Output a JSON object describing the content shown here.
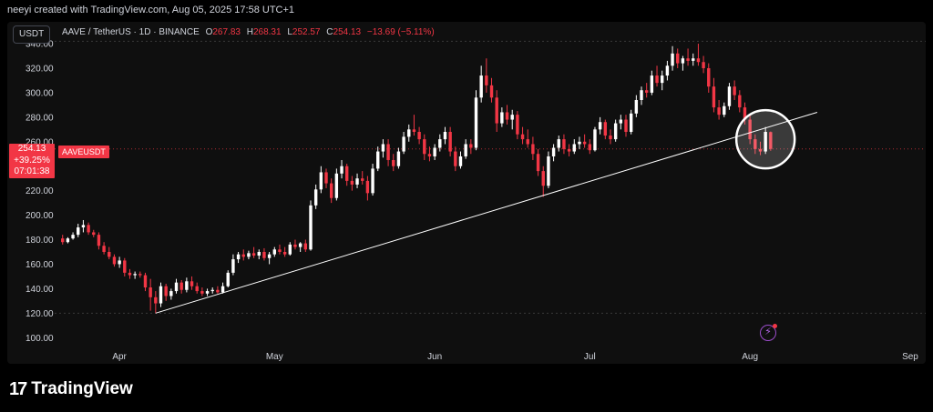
{
  "header": {
    "attribution": "neeyi created with TradingView.com, Aug 05, 2025 17:58 UTC+1"
  },
  "toolbar": {
    "currency": "USDT"
  },
  "legend": {
    "symbol": "AAVE / TetherUS · 1D · BINANCE",
    "open_label": "O",
    "open": "267.83",
    "high_label": "H",
    "high": "268.31",
    "low_label": "L",
    "low": "252.57",
    "close_label": "C",
    "close": "254.13",
    "change": "−13.69 (−5.11%)"
  },
  "price_badge": {
    "price": "254.13",
    "change_pct": "+39.25%",
    "countdown": "07:01:38"
  },
  "price_tag": "AAVEUSDT",
  "footer": {
    "brand": "TradingView",
    "logo_icon": "tradingview-logo-icon"
  },
  "colors": {
    "up": "#ffffff",
    "down": "#f23645",
    "background": "#0f0f0f",
    "trendline": "#ffffff",
    "accent": "#9c4dcc"
  },
  "chart_data": {
    "type": "candlestick",
    "y_ticks": [
      "100.00",
      "120.00",
      "140.00",
      "160.00",
      "180.00",
      "200.00",
      "220.00",
      "240.00",
      "260.00",
      "280.00",
      "300.00",
      "320.00",
      "340.00"
    ],
    "ylim": [
      95,
      343
    ],
    "x_tick_labels": [
      {
        "label": "Apr",
        "date": "2025-04-01"
      },
      {
        "label": "May",
        "date": "2025-05-01"
      },
      {
        "label": "Jun",
        "date": "2025-06-01"
      },
      {
        "label": "Jul",
        "date": "2025-07-01"
      },
      {
        "label": "Aug",
        "date": "2025-08-01"
      },
      {
        "label": "Sep",
        "date": "2025-09-01"
      }
    ],
    "xlim": [
      "2025-03-11",
      "2025-09-04"
    ],
    "dashed_levels": [
      342,
      120
    ],
    "current_price": 254.13,
    "trendline": {
      "start": {
        "date": "2025-04-08",
        "price": 120
      },
      "end": {
        "date": "2025-08-14",
        "price": 284
      }
    },
    "highlight_circle": {
      "date": "2025-08-04",
      "price": 262
    },
    "candles": [
      {
        "date": "2025-03-21",
        "o": 181,
        "h": 184,
        "l": 176,
        "c": 178
      },
      {
        "date": "2025-03-22",
        "o": 178,
        "h": 182,
        "l": 177,
        "c": 181
      },
      {
        "date": "2025-03-23",
        "o": 181,
        "h": 186,
        "l": 180,
        "c": 184
      },
      {
        "date": "2025-03-24",
        "o": 184,
        "h": 193,
        "l": 182,
        "c": 190
      },
      {
        "date": "2025-03-25",
        "o": 190,
        "h": 196,
        "l": 186,
        "c": 192
      },
      {
        "date": "2025-03-26",
        "o": 192,
        "h": 194,
        "l": 184,
        "c": 186
      },
      {
        "date": "2025-03-27",
        "o": 186,
        "h": 188,
        "l": 182,
        "c": 184
      },
      {
        "date": "2025-03-28",
        "o": 184,
        "h": 186,
        "l": 172,
        "c": 175
      },
      {
        "date": "2025-03-29",
        "o": 175,
        "h": 178,
        "l": 168,
        "c": 170
      },
      {
        "date": "2025-03-30",
        "o": 170,
        "h": 174,
        "l": 164,
        "c": 166
      },
      {
        "date": "2025-03-31",
        "o": 166,
        "h": 168,
        "l": 158,
        "c": 160
      },
      {
        "date": "2025-04-01",
        "o": 160,
        "h": 166,
        "l": 157,
        "c": 163
      },
      {
        "date": "2025-04-02",
        "o": 163,
        "h": 165,
        "l": 150,
        "c": 153
      },
      {
        "date": "2025-04-03",
        "o": 153,
        "h": 156,
        "l": 148,
        "c": 151
      },
      {
        "date": "2025-04-04",
        "o": 151,
        "h": 154,
        "l": 148,
        "c": 152
      },
      {
        "date": "2025-04-05",
        "o": 152,
        "h": 154,
        "l": 149,
        "c": 151
      },
      {
        "date": "2025-04-06",
        "o": 151,
        "h": 153,
        "l": 138,
        "c": 141
      },
      {
        "date": "2025-04-07",
        "o": 141,
        "h": 148,
        "l": 122,
        "c": 133
      },
      {
        "date": "2025-04-08",
        "o": 133,
        "h": 138,
        "l": 120,
        "c": 128
      },
      {
        "date": "2025-04-09",
        "o": 128,
        "h": 145,
        "l": 125,
        "c": 142
      },
      {
        "date": "2025-04-10",
        "o": 142,
        "h": 144,
        "l": 130,
        "c": 134
      },
      {
        "date": "2025-04-11",
        "o": 134,
        "h": 140,
        "l": 131,
        "c": 138
      },
      {
        "date": "2025-04-12",
        "o": 138,
        "h": 148,
        "l": 136,
        "c": 145
      },
      {
        "date": "2025-04-13",
        "o": 145,
        "h": 147,
        "l": 136,
        "c": 139
      },
      {
        "date": "2025-04-14",
        "o": 139,
        "h": 149,
        "l": 137,
        "c": 146
      },
      {
        "date": "2025-04-15",
        "o": 146,
        "h": 150,
        "l": 139,
        "c": 142
      },
      {
        "date": "2025-04-16",
        "o": 142,
        "h": 145,
        "l": 136,
        "c": 138
      },
      {
        "date": "2025-04-17",
        "o": 138,
        "h": 141,
        "l": 134,
        "c": 136
      },
      {
        "date": "2025-04-18",
        "o": 136,
        "h": 140,
        "l": 134,
        "c": 138
      },
      {
        "date": "2025-04-19",
        "o": 138,
        "h": 141,
        "l": 136,
        "c": 139
      },
      {
        "date": "2025-04-20",
        "o": 139,
        "h": 142,
        "l": 136,
        "c": 137
      },
      {
        "date": "2025-04-21",
        "o": 137,
        "h": 145,
        "l": 136,
        "c": 142
      },
      {
        "date": "2025-04-22",
        "o": 142,
        "h": 155,
        "l": 141,
        "c": 153
      },
      {
        "date": "2025-04-23",
        "o": 153,
        "h": 168,
        "l": 151,
        "c": 164
      },
      {
        "date": "2025-04-24",
        "o": 164,
        "h": 170,
        "l": 161,
        "c": 168
      },
      {
        "date": "2025-04-25",
        "o": 168,
        "h": 172,
        "l": 163,
        "c": 166
      },
      {
        "date": "2025-04-26",
        "o": 166,
        "h": 171,
        "l": 164,
        "c": 169
      },
      {
        "date": "2025-04-27",
        "o": 169,
        "h": 174,
        "l": 165,
        "c": 167
      },
      {
        "date": "2025-04-28",
        "o": 167,
        "h": 172,
        "l": 164,
        "c": 170
      },
      {
        "date": "2025-04-29",
        "o": 170,
        "h": 173,
        "l": 163,
        "c": 165
      },
      {
        "date": "2025-04-30",
        "o": 165,
        "h": 170,
        "l": 160,
        "c": 168
      },
      {
        "date": "2025-05-01",
        "o": 168,
        "h": 174,
        "l": 166,
        "c": 172
      },
      {
        "date": "2025-05-02",
        "o": 172,
        "h": 176,
        "l": 168,
        "c": 170
      },
      {
        "date": "2025-05-03",
        "o": 170,
        "h": 174,
        "l": 166,
        "c": 168
      },
      {
        "date": "2025-05-04",
        "o": 168,
        "h": 178,
        "l": 167,
        "c": 176
      },
      {
        "date": "2025-05-05",
        "o": 176,
        "h": 180,
        "l": 172,
        "c": 174
      },
      {
        "date": "2025-05-06",
        "o": 174,
        "h": 178,
        "l": 170,
        "c": 177
      },
      {
        "date": "2025-05-07",
        "o": 177,
        "h": 180,
        "l": 170,
        "c": 172
      },
      {
        "date": "2025-05-08",
        "o": 172,
        "h": 212,
        "l": 171,
        "c": 208
      },
      {
        "date": "2025-05-09",
        "o": 208,
        "h": 225,
        "l": 205,
        "c": 221
      },
      {
        "date": "2025-05-10",
        "o": 221,
        "h": 240,
        "l": 218,
        "c": 235
      },
      {
        "date": "2025-05-11",
        "o": 235,
        "h": 238,
        "l": 222,
        "c": 226
      },
      {
        "date": "2025-05-12",
        "o": 226,
        "h": 230,
        "l": 210,
        "c": 214
      },
      {
        "date": "2025-05-13",
        "o": 214,
        "h": 238,
        "l": 212,
        "c": 234
      },
      {
        "date": "2025-05-14",
        "o": 234,
        "h": 245,
        "l": 230,
        "c": 240
      },
      {
        "date": "2025-05-15",
        "o": 240,
        "h": 242,
        "l": 224,
        "c": 228
      },
      {
        "date": "2025-05-16",
        "o": 228,
        "h": 232,
        "l": 220,
        "c": 225
      },
      {
        "date": "2025-05-17",
        "o": 225,
        "h": 234,
        "l": 222,
        "c": 230
      },
      {
        "date": "2025-05-18",
        "o": 230,
        "h": 236,
        "l": 225,
        "c": 228
      },
      {
        "date": "2025-05-19",
        "o": 228,
        "h": 232,
        "l": 212,
        "c": 218
      },
      {
        "date": "2025-05-20",
        "o": 218,
        "h": 242,
        "l": 216,
        "c": 238
      },
      {
        "date": "2025-05-21",
        "o": 238,
        "h": 256,
        "l": 236,
        "c": 252
      },
      {
        "date": "2025-05-22",
        "o": 252,
        "h": 262,
        "l": 247,
        "c": 258
      },
      {
        "date": "2025-05-23",
        "o": 258,
        "h": 262,
        "l": 240,
        "c": 245
      },
      {
        "date": "2025-05-24",
        "o": 245,
        "h": 250,
        "l": 236,
        "c": 240
      },
      {
        "date": "2025-05-25",
        "o": 240,
        "h": 255,
        "l": 238,
        "c": 252
      },
      {
        "date": "2025-05-26",
        "o": 252,
        "h": 268,
        "l": 250,
        "c": 264
      },
      {
        "date": "2025-05-27",
        "o": 264,
        "h": 274,
        "l": 260,
        "c": 270
      },
      {
        "date": "2025-05-28",
        "o": 270,
        "h": 282,
        "l": 265,
        "c": 268
      },
      {
        "date": "2025-05-29",
        "o": 268,
        "h": 272,
        "l": 258,
        "c": 262
      },
      {
        "date": "2025-05-30",
        "o": 262,
        "h": 266,
        "l": 245,
        "c": 250
      },
      {
        "date": "2025-05-31",
        "o": 250,
        "h": 256,
        "l": 244,
        "c": 248
      },
      {
        "date": "2025-06-01",
        "o": 248,
        "h": 258,
        "l": 245,
        "c": 255
      },
      {
        "date": "2025-06-02",
        "o": 255,
        "h": 266,
        "l": 252,
        "c": 262
      },
      {
        "date": "2025-06-03",
        "o": 262,
        "h": 272,
        "l": 258,
        "c": 268
      },
      {
        "date": "2025-06-04",
        "o": 268,
        "h": 272,
        "l": 248,
        "c": 252
      },
      {
        "date": "2025-06-05",
        "o": 252,
        "h": 256,
        "l": 236,
        "c": 240
      },
      {
        "date": "2025-06-06",
        "o": 240,
        "h": 252,
        "l": 238,
        "c": 248
      },
      {
        "date": "2025-06-07",
        "o": 248,
        "h": 262,
        "l": 246,
        "c": 258
      },
      {
        "date": "2025-06-08",
        "o": 258,
        "h": 262,
        "l": 250,
        "c": 255
      },
      {
        "date": "2025-06-09",
        "o": 255,
        "h": 302,
        "l": 253,
        "c": 296
      },
      {
        "date": "2025-06-10",
        "o": 296,
        "h": 322,
        "l": 292,
        "c": 314
      },
      {
        "date": "2025-06-11",
        "o": 314,
        "h": 328,
        "l": 300,
        "c": 306
      },
      {
        "date": "2025-06-12",
        "o": 306,
        "h": 312,
        "l": 292,
        "c": 296
      },
      {
        "date": "2025-06-13",
        "o": 296,
        "h": 302,
        "l": 268,
        "c": 275
      },
      {
        "date": "2025-06-14",
        "o": 275,
        "h": 288,
        "l": 272,
        "c": 284
      },
      {
        "date": "2025-06-15",
        "o": 284,
        "h": 290,
        "l": 274,
        "c": 278
      },
      {
        "date": "2025-06-16",
        "o": 278,
        "h": 286,
        "l": 270,
        "c": 282
      },
      {
        "date": "2025-06-17",
        "o": 282,
        "h": 285,
        "l": 262,
        "c": 266
      },
      {
        "date": "2025-06-18",
        "o": 266,
        "h": 272,
        "l": 258,
        "c": 262
      },
      {
        "date": "2025-06-19",
        "o": 262,
        "h": 270,
        "l": 255,
        "c": 258
      },
      {
        "date": "2025-06-20",
        "o": 258,
        "h": 264,
        "l": 245,
        "c": 250
      },
      {
        "date": "2025-06-21",
        "o": 250,
        "h": 254,
        "l": 232,
        "c": 236
      },
      {
        "date": "2025-06-22",
        "o": 236,
        "h": 240,
        "l": 215,
        "c": 224
      },
      {
        "date": "2025-06-23",
        "o": 224,
        "h": 252,
        "l": 222,
        "c": 248
      },
      {
        "date": "2025-06-24",
        "o": 248,
        "h": 258,
        "l": 244,
        "c": 255
      },
      {
        "date": "2025-06-25",
        "o": 255,
        "h": 265,
        "l": 252,
        "c": 262
      },
      {
        "date": "2025-06-26",
        "o": 262,
        "h": 266,
        "l": 250,
        "c": 254
      },
      {
        "date": "2025-06-27",
        "o": 254,
        "h": 258,
        "l": 248,
        "c": 252
      },
      {
        "date": "2025-06-28",
        "o": 252,
        "h": 262,
        "l": 250,
        "c": 258
      },
      {
        "date": "2025-06-29",
        "o": 258,
        "h": 264,
        "l": 254,
        "c": 260
      },
      {
        "date": "2025-06-30",
        "o": 260,
        "h": 266,
        "l": 255,
        "c": 258
      },
      {
        "date": "2025-07-01",
        "o": 258,
        "h": 262,
        "l": 250,
        "c": 253
      },
      {
        "date": "2025-07-02",
        "o": 253,
        "h": 272,
        "l": 252,
        "c": 270
      },
      {
        "date": "2025-07-03",
        "o": 270,
        "h": 280,
        "l": 266,
        "c": 276
      },
      {
        "date": "2025-07-04",
        "o": 276,
        "h": 278,
        "l": 262,
        "c": 265
      },
      {
        "date": "2025-07-05",
        "o": 265,
        "h": 270,
        "l": 258,
        "c": 262
      },
      {
        "date": "2025-07-06",
        "o": 262,
        "h": 278,
        "l": 260,
        "c": 275
      },
      {
        "date": "2025-07-07",
        "o": 275,
        "h": 282,
        "l": 270,
        "c": 278
      },
      {
        "date": "2025-07-08",
        "o": 278,
        "h": 282,
        "l": 264,
        "c": 268
      },
      {
        "date": "2025-07-09",
        "o": 268,
        "h": 286,
        "l": 266,
        "c": 283
      },
      {
        "date": "2025-07-10",
        "o": 283,
        "h": 298,
        "l": 280,
        "c": 294
      },
      {
        "date": "2025-07-11",
        "o": 294,
        "h": 305,
        "l": 290,
        "c": 302
      },
      {
        "date": "2025-07-12",
        "o": 302,
        "h": 308,
        "l": 296,
        "c": 300
      },
      {
        "date": "2025-07-13",
        "o": 300,
        "h": 318,
        "l": 298,
        "c": 314
      },
      {
        "date": "2025-07-14",
        "o": 314,
        "h": 322,
        "l": 305,
        "c": 308
      },
      {
        "date": "2025-07-15",
        "o": 308,
        "h": 318,
        "l": 302,
        "c": 314
      },
      {
        "date": "2025-07-16",
        "o": 314,
        "h": 326,
        "l": 310,
        "c": 322
      },
      {
        "date": "2025-07-17",
        "o": 322,
        "h": 338,
        "l": 318,
        "c": 332
      },
      {
        "date": "2025-07-18",
        "o": 332,
        "h": 336,
        "l": 320,
        "c": 324
      },
      {
        "date": "2025-07-19",
        "o": 324,
        "h": 330,
        "l": 318,
        "c": 328
      },
      {
        "date": "2025-07-20",
        "o": 328,
        "h": 336,
        "l": 322,
        "c": 326
      },
      {
        "date": "2025-07-21",
        "o": 326,
        "h": 332,
        "l": 322,
        "c": 328
      },
      {
        "date": "2025-07-22",
        "o": 328,
        "h": 340,
        "l": 322,
        "c": 325
      },
      {
        "date": "2025-07-23",
        "o": 325,
        "h": 330,
        "l": 316,
        "c": 320
      },
      {
        "date": "2025-07-24",
        "o": 320,
        "h": 324,
        "l": 300,
        "c": 305
      },
      {
        "date": "2025-07-25",
        "o": 305,
        "h": 312,
        "l": 284,
        "c": 288
      },
      {
        "date": "2025-07-26",
        "o": 288,
        "h": 294,
        "l": 278,
        "c": 282
      },
      {
        "date": "2025-07-27",
        "o": 282,
        "h": 292,
        "l": 280,
        "c": 289
      },
      {
        "date": "2025-07-28",
        "o": 289,
        "h": 308,
        "l": 286,
        "c": 305
      },
      {
        "date": "2025-07-29",
        "o": 305,
        "h": 310,
        "l": 294,
        "c": 298
      },
      {
        "date": "2025-07-30",
        "o": 298,
        "h": 302,
        "l": 284,
        "c": 288
      },
      {
        "date": "2025-07-31",
        "o": 288,
        "h": 292,
        "l": 274,
        "c": 278
      },
      {
        "date": "2025-08-01",
        "o": 278,
        "h": 282,
        "l": 258,
        "c": 262
      },
      {
        "date": "2025-08-02",
        "o": 262,
        "h": 266,
        "l": 250,
        "c": 254
      },
      {
        "date": "2025-08-03",
        "o": 254,
        "h": 260,
        "l": 249,
        "c": 252
      },
      {
        "date": "2025-08-04",
        "o": 252,
        "h": 272,
        "l": 250,
        "c": 268
      },
      {
        "date": "2025-08-05",
        "o": 267.83,
        "h": 268.31,
        "l": 252.57,
        "c": 254.13
      }
    ]
  }
}
